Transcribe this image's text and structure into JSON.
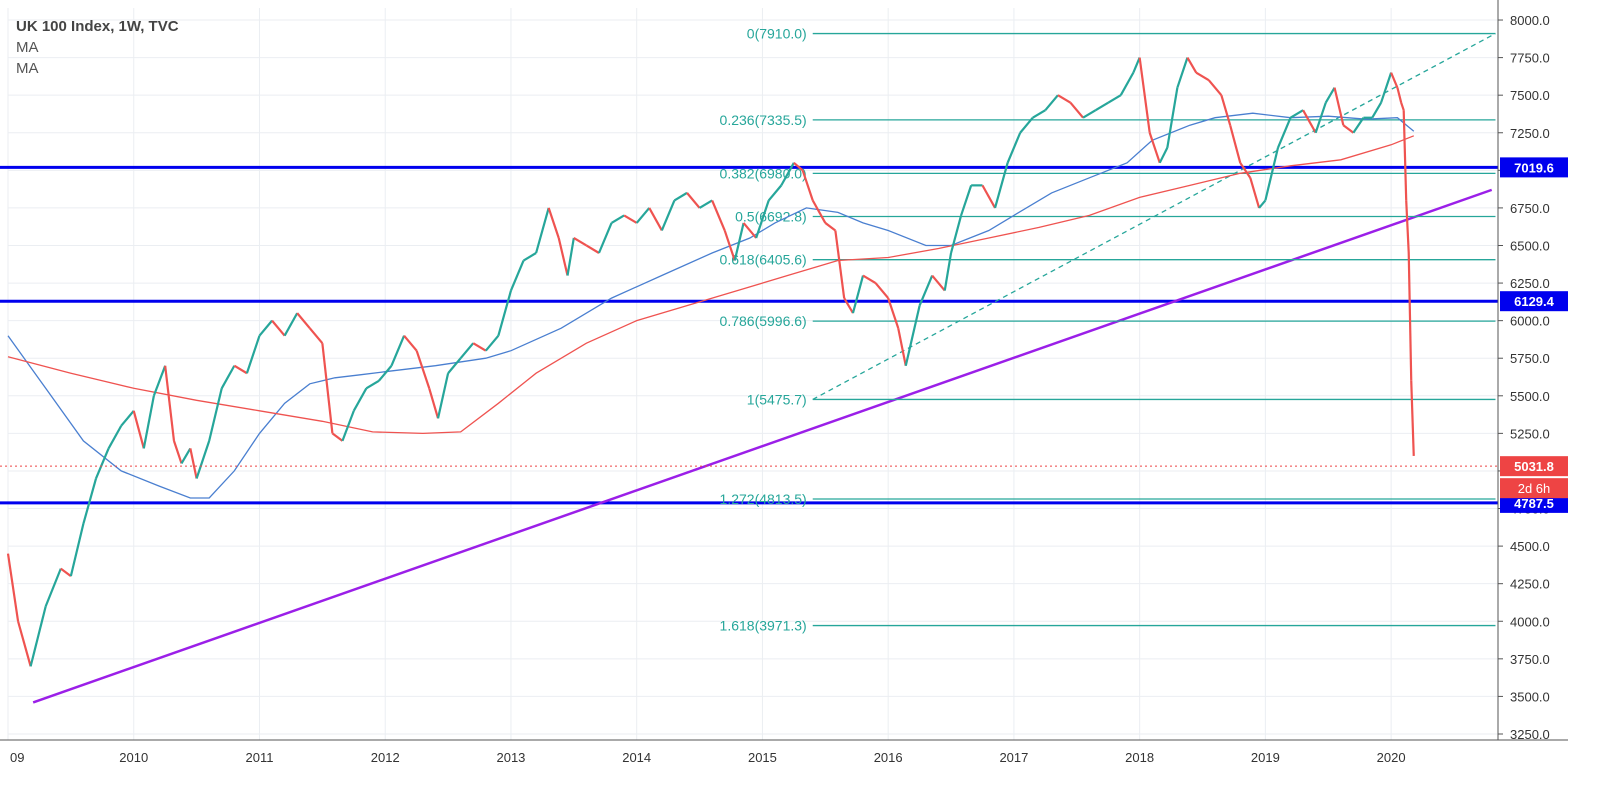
{
  "legend": {
    "title": "UK 100 Index, 1W, TVC",
    "ma1": "MA",
    "ma2": "MA"
  },
  "colors": {
    "grid": "#ebeef2",
    "candle_up": "#26a69a",
    "candle_down": "#ef5350",
    "price_line": "#ee4444",
    "ma_fast": "#4a7fd0",
    "ma_slow": "#ef5350",
    "fib": "#26a69a",
    "support_resistance": "#0000ee",
    "trendline": "#9b1fe8",
    "axis_text": "#333333"
  },
  "chart_data": {
    "type": "line",
    "title": "UK 100 Index, 1W, TVC",
    "x_axis": {
      "ticks": [
        "09",
        "2010",
        "2011",
        "2012",
        "2013",
        "2014",
        "2015",
        "2016",
        "2017",
        "2018",
        "2019",
        "2020"
      ],
      "range": [
        2009.0,
        2020.85
      ]
    },
    "y_axis": {
      "ticks": [
        "3250.0",
        "3500.0",
        "3750.0",
        "4000.0",
        "4250.0",
        "4500.0",
        "4750.0",
        "5000.0",
        "5250.0",
        "5500.0",
        "5750.0",
        "6000.0",
        "6250.0",
        "6500.0",
        "6750.0",
        "7000.0",
        "7250.0",
        "7500.0",
        "7750.0",
        "8000.0"
      ],
      "range": [
        3210,
        8080
      ],
      "position": "right"
    },
    "grid": true,
    "series": [
      {
        "name": "UK 100 Index",
        "x": [
          2009.0,
          2009.08,
          2009.18,
          2009.3,
          2009.42,
          2009.5,
          2009.6,
          2009.7,
          2009.8,
          2009.9,
          2010.0,
          2010.08,
          2010.16,
          2010.25,
          2010.32,
          2010.38,
          2010.45,
          2010.5,
          2010.6,
          2010.7,
          2010.8,
          2010.9,
          2011.0,
          2011.1,
          2011.2,
          2011.3,
          2011.4,
          2011.5,
          2011.58,
          2011.66,
          2011.75,
          2011.85,
          2011.95,
          2012.05,
          2012.15,
          2012.25,
          2012.35,
          2012.42,
          2012.5,
          2012.6,
          2012.7,
          2012.8,
          2012.9,
          2013.0,
          2013.1,
          2013.2,
          2013.3,
          2013.38,
          2013.45,
          2013.5,
          2013.6,
          2013.7,
          2013.8,
          2013.9,
          2014.0,
          2014.1,
          2014.2,
          2014.3,
          2014.4,
          2014.5,
          2014.6,
          2014.7,
          2014.78,
          2014.85,
          2014.95,
          2015.05,
          2015.15,
          2015.25,
          2015.32,
          2015.4,
          2015.5,
          2015.58,
          2015.65,
          2015.72,
          2015.8,
          2015.9,
          2016.0,
          2016.08,
          2016.14,
          2016.25,
          2016.35,
          2016.45,
          2016.5,
          2016.58,
          2016.66,
          2016.75,
          2016.85,
          2016.95,
          2017.05,
          2017.15,
          2017.25,
          2017.35,
          2017.45,
          2017.55,
          2017.65,
          2017.75,
          2017.85,
          2017.95,
          2018.0,
          2018.08,
          2018.16,
          2018.22,
          2018.3,
          2018.38,
          2018.45,
          2018.55,
          2018.65,
          2018.72,
          2018.8,
          2018.88,
          2018.95,
          2019.0,
          2019.1,
          2019.2,
          2019.3,
          2019.4,
          2019.48,
          2019.55,
          2019.62,
          2019.7,
          2019.78,
          2019.85,
          2019.92,
          2020.0,
          2020.05,
          2020.08,
          2020.1,
          2020.12,
          2020.14,
          2020.16,
          2020.18
        ],
        "y": [
          4450,
          4000,
          3700,
          4100,
          4350,
          4300,
          4650,
          4950,
          5150,
          5300,
          5400,
          5150,
          5500,
          5700,
          5200,
          5050,
          5150,
          4950,
          5200,
          5550,
          5700,
          5650,
          5900,
          6000,
          5900,
          6050,
          5950,
          5850,
          5250,
          5200,
          5400,
          5550,
          5600,
          5700,
          5900,
          5800,
          5550,
          5350,
          5650,
          5750,
          5850,
          5800,
          5900,
          6200,
          6400,
          6450,
          6750,
          6550,
          6300,
          6550,
          6500,
          6450,
          6650,
          6700,
          6650,
          6750,
          6600,
          6800,
          6850,
          6750,
          6800,
          6600,
          6400,
          6650,
          6550,
          6800,
          6900,
          7050,
          7000,
          6800,
          6650,
          6600,
          6150,
          6050,
          6300,
          6250,
          6150,
          5950,
          5700,
          6100,
          6300,
          6200,
          6450,
          6700,
          6900,
          6900,
          6750,
          7050,
          7250,
          7350,
          7400,
          7500,
          7450,
          7350,
          7400,
          7450,
          7500,
          7650,
          7750,
          7250,
          7050,
          7150,
          7550,
          7750,
          7650,
          7600,
          7500,
          7300,
          7050,
          6950,
          6750,
          6800,
          7150,
          7350,
          7400,
          7250,
          7450,
          7550,
          7300,
          7250,
          7350,
          7350,
          7450,
          7650,
          7550,
          7450,
          7400,
          6800,
          6450,
          5600,
          5100
        ]
      },
      {
        "name": "MA",
        "x": [
          2009.0,
          2009.3,
          2009.6,
          2009.9,
          2010.2,
          2010.45,
          2010.6,
          2010.8,
          2011.0,
          2011.2,
          2011.4,
          2011.6,
          2011.8,
          2012.0,
          2012.4,
          2012.8,
          2013.0,
          2013.4,
          2013.8,
          2014.2,
          2014.6,
          2014.9,
          2015.1,
          2015.35,
          2015.6,
          2015.8,
          2016.0,
          2016.3,
          2016.5,
          2016.8,
          2017.0,
          2017.3,
          2017.6,
          2017.9,
          2018.1,
          2018.4,
          2018.6,
          2018.9,
          2019.2,
          2019.5,
          2019.8,
          2020.05,
          2020.18
        ],
        "y": [
          5900,
          5550,
          5200,
          5000,
          4900,
          4820,
          4820,
          5000,
          5250,
          5450,
          5580,
          5620,
          5640,
          5660,
          5700,
          5750,
          5800,
          5950,
          6150,
          6300,
          6450,
          6550,
          6650,
          6750,
          6720,
          6650,
          6600,
          6500,
          6500,
          6600,
          6700,
          6850,
          6950,
          7050,
          7200,
          7300,
          7350,
          7380,
          7350,
          7360,
          7340,
          7350,
          7260
        ]
      },
      {
        "name": "MA",
        "x": [
          2009.0,
          2009.5,
          2010.0,
          2010.5,
          2011.0,
          2011.5,
          2011.9,
          2012.3,
          2012.6,
          2012.9,
          2013.2,
          2013.6,
          2014.0,
          2014.4,
          2014.8,
          2015.2,
          2015.6,
          2016.0,
          2016.4,
          2016.8,
          2017.2,
          2017.6,
          2018.0,
          2018.4,
          2018.8,
          2019.2,
          2019.6,
          2020.0,
          2020.18
        ],
        "y": [
          5760,
          5650,
          5550,
          5470,
          5400,
          5330,
          5260,
          5250,
          5260,
          5450,
          5650,
          5850,
          6000,
          6100,
          6200,
          6300,
          6400,
          6420,
          6480,
          6550,
          6620,
          6700,
          6820,
          6900,
          6980,
          7030,
          7070,
          7170,
          7230
        ]
      }
    ],
    "fib_levels": [
      {
        "label": "0(7910.0)",
        "value": 7910.0
      },
      {
        "label": "0.236(7335.5)",
        "value": 7335.5
      },
      {
        "label": "0.382(6980.0)",
        "value": 6980.0
      },
      {
        "label": "0.5(6692.8)",
        "value": 6692.8
      },
      {
        "label": "0.618(6405.6)",
        "value": 6405.6
      },
      {
        "label": "0.786(5996.6)",
        "value": 5996.6
      },
      {
        "label": "1(5475.7)",
        "value": 5475.7
      },
      {
        "label": "1.272(4813.5)",
        "value": 4813.5
      },
      {
        "label": "1.618(3971.3)",
        "value": 3971.3
      }
    ],
    "fib_range": {
      "x_start": 2015.4,
      "x_end": 2020.83
    },
    "fib_diagonal": {
      "x": [
        2015.4,
        2020.83
      ],
      "y": [
        5475.7,
        7910.0
      ]
    },
    "horizontal_lines": [
      {
        "label": "7019.6",
        "value": 7019.6
      },
      {
        "label": "6129.4",
        "value": 6129.4
      },
      {
        "label": "4787.5",
        "value": 4787.5
      }
    ],
    "trendline": {
      "x": [
        2009.2,
        2020.8
      ],
      "y": [
        3460,
        6870
      ]
    },
    "current_price": {
      "label": "5031.8",
      "value": 5031.8,
      "countdown": "2d 6h"
    }
  }
}
